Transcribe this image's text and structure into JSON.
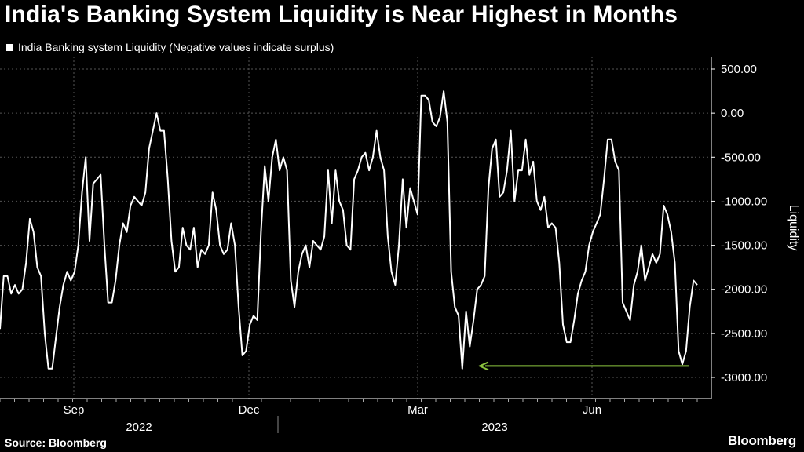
{
  "title": "India's Banking System Liquidity is Near Highest in Months",
  "source": "Source: Bloomberg",
  "brand": "Bloomberg",
  "chart_data": {
    "type": "line",
    "title": "India's Banking System Liquidity is Near Highest in Months",
    "ylabel": "Liquidity",
    "ylim": [
      -3000,
      500
    ],
    "y_ticks": [
      {
        "value": 500,
        "label": "500.00"
      },
      {
        "value": 0,
        "label": "0.00"
      },
      {
        "value": -500,
        "label": "-500.00"
      },
      {
        "value": -1000,
        "label": "-1000.00"
      },
      {
        "value": -1500,
        "label": "-1500.00"
      },
      {
        "value": -2000,
        "label": "-2000.00"
      },
      {
        "value": -2500,
        "label": "-2500.00"
      },
      {
        "value": -3000,
        "label": "-3000.00"
      }
    ],
    "x_month_ticks": [
      "Sep",
      "Dec",
      "Mar",
      "Jun"
    ],
    "x_year_labels": [
      "2022",
      "2023"
    ],
    "grid": true,
    "legend": "top-left",
    "colors": {
      "line": "#ffffff",
      "arrow": "#8dc63f",
      "grid": "#555555",
      "background": "#000000"
    },
    "series": [
      {
        "name": "India Banking system Liquidity (Negative values indicate surplus)",
        "values": [
          -2450,
          -1850,
          -1850,
          -2050,
          -1950,
          -2050,
          -2000,
          -1700,
          -1200,
          -1350,
          -1750,
          -1850,
          -2500,
          -2900,
          -2900,
          -2550,
          -2200,
          -1950,
          -1800,
          -1900,
          -1800,
          -1500,
          -900,
          -500,
          -1450,
          -800,
          -750,
          -700,
          -1500,
          -2150,
          -2150,
          -1900,
          -1500,
          -1250,
          -1350,
          -1050,
          -950,
          -1000,
          -1050,
          -900,
          -400,
          -200,
          0,
          -200,
          -200,
          -750,
          -1450,
          -1800,
          -1750,
          -1300,
          -1500,
          -1550,
          -1300,
          -1750,
          -1550,
          -1600,
          -1500,
          -900,
          -1100,
          -1500,
          -1600,
          -1550,
          -1250,
          -1500,
          -2200,
          -2750,
          -2700,
          -2400,
          -2300,
          -2350,
          -1350,
          -600,
          -1000,
          -500,
          -300,
          -650,
          -500,
          -650,
          -1900,
          -2200,
          -1800,
          -1600,
          -1500,
          -1750,
          -1450,
          -1500,
          -1550,
          -1400,
          -650,
          -1250,
          -650,
          -1000,
          -1100,
          -1500,
          -1550,
          -750,
          -650,
          -500,
          -450,
          -650,
          -500,
          -200,
          -500,
          -650,
          -1400,
          -1800,
          -1950,
          -1500,
          -750,
          -1300,
          -850,
          -1000,
          -1150,
          200,
          200,
          150,
          -100,
          -150,
          -50,
          250,
          -100,
          -1800,
          -2200,
          -2300,
          -2900,
          -2250,
          -2650,
          -2350,
          -2000,
          -1950,
          -1850,
          -850,
          -400,
          -300,
          -950,
          -900,
          -650,
          -200,
          -1000,
          -650,
          -650,
          -300,
          -700,
          -550,
          -1000,
          -1100,
          -950,
          -1300,
          -1250,
          -1300,
          -1700,
          -2400,
          -2600,
          -2600,
          -2350,
          -2050,
          -1900,
          -1800,
          -1500,
          -1350,
          -1250,
          -1150,
          -750,
          -300,
          -300,
          -550,
          -650,
          -2150,
          -2250,
          -2350,
          -1950,
          -1800,
          -1500,
          -1900,
          -1750,
          -1600,
          -1700,
          -1600,
          -1050,
          -1150,
          -1350,
          -1700,
          -2700,
          -2850,
          -2700,
          -2200,
          -1900,
          -1950
        ]
      }
    ],
    "annotations": [
      {
        "type": "arrow",
        "from_value": -2870,
        "to_value": -2870,
        "description_color": "#8dc63f"
      }
    ]
  }
}
